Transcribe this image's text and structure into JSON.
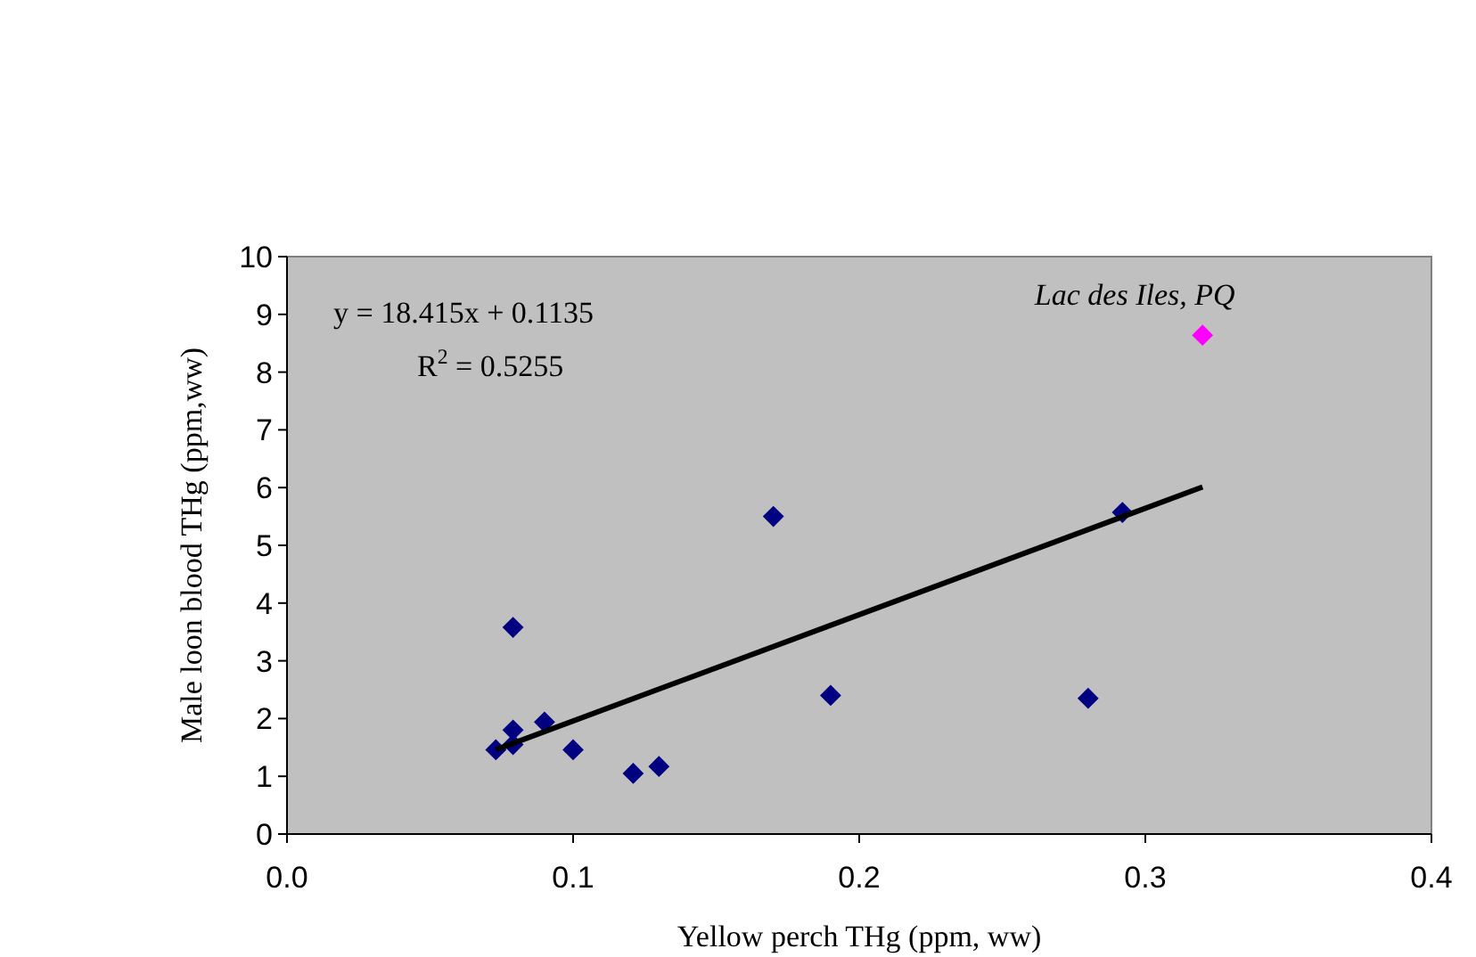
{
  "chart_data": {
    "type": "scatter",
    "xlabel": "Yellow perch THg (ppm, ww)",
    "ylabel": "Male loon blood THg (ppm,ww)",
    "xlim": [
      0,
      0.4
    ],
    "xticks": [
      {
        "value": 0,
        "label": "0.0"
      },
      0.1,
      0.2,
      0.3,
      0.4
    ],
    "ylim": [
      0,
      10
    ],
    "yticks": [
      0,
      1,
      2,
      3,
      4,
      5,
      6,
      7,
      8,
      9,
      10
    ],
    "marker": "diamond",
    "grid": false,
    "series": [
      {
        "color": "#000080",
        "x": [
          0.073,
          0.079,
          0.079,
          0.079,
          0.09,
          0.1,
          0.121,
          0.13,
          0.17,
          0.19,
          0.28,
          0.292
        ],
        "values": [
          1.46,
          1.55,
          1.8,
          3.58,
          1.94,
          1.46,
          1.05,
          1.17,
          5.5,
          2.4,
          2.35,
          5.57
        ]
      },
      {
        "color": "#ff00ff",
        "x": [
          0.32
        ],
        "values": [
          8.64
        ]
      },
      {
        "type": "line",
        "color": "#000000",
        "marker": "none",
        "x": [
          0.073,
          0.32
        ],
        "values": [
          1.46,
          6.01
        ]
      }
    ],
    "annotations": [
      "y = 18.415x + 0.1135",
      "R$^{2}$ = 0.5255",
      {
        "text": "Lac des Iles, PQ",
        "x": 0.32,
        "y": 8.64
      }
    ]
  }
}
